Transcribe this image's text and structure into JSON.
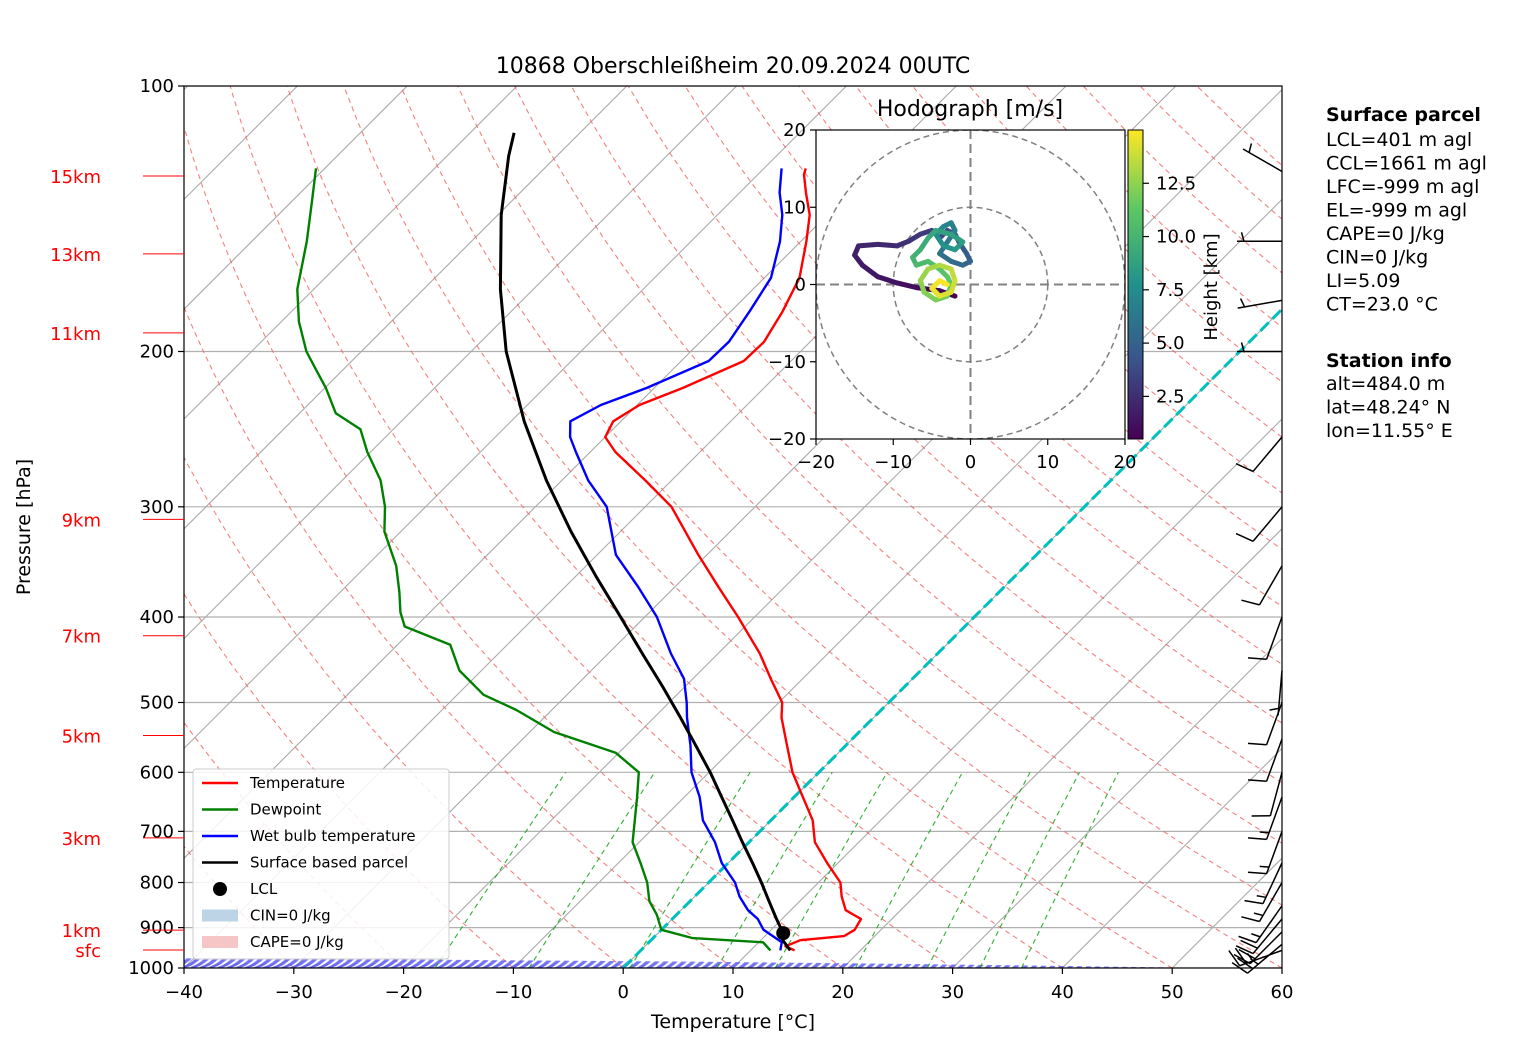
{
  "chart_data": {
    "type": "skew-t",
    "title": "10868 Oberschleißheim 20.09.2024 00UTC",
    "xlabel": "Temperature [°C]",
    "ylabel": "Pressure [hPa]",
    "xlim": [
      -40,
      60
    ],
    "ylim": [
      1000,
      100
    ],
    "x_ticks": [
      "−40",
      "−30",
      "−20",
      "−10",
      "0",
      "10",
      "20",
      "30",
      "40",
      "50",
      "60"
    ],
    "p_ticks": [
      {
        "p": 100,
        "label": "100"
      },
      {
        "p": 200,
        "label": "200"
      },
      {
        "p": 300,
        "label": "300"
      },
      {
        "p": 400,
        "label": "400"
      },
      {
        "p": 500,
        "label": "500"
      },
      {
        "p": 600,
        "label": "600"
      },
      {
        "p": 700,
        "label": "700"
      },
      {
        "p": 800,
        "label": "800"
      },
      {
        "p": 900,
        "label": "900"
      },
      {
        "p": 1000,
        "label": "1000"
      }
    ],
    "height_labels": [
      {
        "p": 126.5,
        "label": "15km"
      },
      {
        "p": 155,
        "label": "13km"
      },
      {
        "p": 190.5,
        "label": "11km"
      },
      {
        "p": 310,
        "label": "9km"
      },
      {
        "p": 420,
        "label": "7km"
      },
      {
        "p": 545,
        "label": "5km"
      },
      {
        "p": 712,
        "label": "3km"
      },
      {
        "p": 906,
        "label": "1km"
      },
      {
        "p": 954,
        "label": "sfc"
      }
    ],
    "legend": [
      {
        "label": "Temperature",
        "color": "#ff0000",
        "kind": "line"
      },
      {
        "label": "Dewpoint",
        "color": "#008000",
        "kind": "line"
      },
      {
        "label": "Wet bulb temperature",
        "color": "#0000ff",
        "kind": "line"
      },
      {
        "label": "Surface based parcel",
        "color": "#000000",
        "kind": "line"
      },
      {
        "label": "LCL",
        "color": "#000000",
        "kind": "dot"
      },
      {
        "label": "CIN=0 J/kg",
        "color": "#bcd4e6",
        "kind": "patch"
      },
      {
        "label": "CAPE=0 J/kg",
        "color": "#f6c6c6",
        "kind": "patch"
      }
    ],
    "legend_position": "lower-left",
    "colors": {
      "temperature": "#ff0000",
      "dewpoint": "#008000",
      "wetbulb": "#0000ff",
      "parcel": "#000000",
      "zero_isotherm": "#00bfbf"
    },
    "series": [
      {
        "name": "Temperature",
        "points": [
          [
            955,
            14.0
          ],
          [
            945,
            12.8
          ],
          [
            930,
            13.6
          ],
          [
            920,
            17.2
          ],
          [
            905,
            17.6
          ],
          [
            880,
            17.2
          ],
          [
            860,
            15.0
          ],
          [
            830,
            13.4
          ],
          [
            800,
            12.0
          ],
          [
            760,
            9.0
          ],
          [
            720,
            6.0
          ],
          [
            680,
            3.8
          ],
          [
            640,
            0.8
          ],
          [
            600,
            -2.4
          ],
          [
            560,
            -5.3
          ],
          [
            520,
            -8.4
          ],
          [
            500,
            -9.7
          ],
          [
            470,
            -12.9
          ],
          [
            440,
            -16.2
          ],
          [
            400,
            -21.5
          ],
          [
            370,
            -26.0
          ],
          [
            340,
            -30.8
          ],
          [
            300,
            -37.6
          ],
          [
            280,
            -42.4
          ],
          [
            260,
            -47.7
          ],
          [
            250,
            -50.0
          ],
          [
            240,
            -50.7
          ],
          [
            230,
            -49.8
          ],
          [
            220,
            -47.4
          ],
          [
            205,
            -44.3
          ],
          [
            195,
            -44.2
          ],
          [
            180,
            -45.3
          ],
          [
            165,
            -46.8
          ],
          [
            150,
            -49.5
          ],
          [
            140,
            -51.6
          ],
          [
            132,
            -54.0
          ],
          [
            126,
            -55.8
          ],
          [
            124,
            -56.2
          ]
        ]
      },
      {
        "name": "Dewpoint",
        "points": [
          [
            955,
            11.8
          ],
          [
            935,
            10.4
          ],
          [
            925,
            3.6
          ],
          [
            905,
            0.0
          ],
          [
            870,
            -1.8
          ],
          [
            840,
            -3.7
          ],
          [
            800,
            -5.6
          ],
          [
            760,
            -8.0
          ],
          [
            720,
            -10.6
          ],
          [
            680,
            -12.4
          ],
          [
            640,
            -14.3
          ],
          [
            600,
            -16.4
          ],
          [
            570,
            -20.3
          ],
          [
            540,
            -27.8
          ],
          [
            510,
            -33.2
          ],
          [
            490,
            -37.6
          ],
          [
            460,
            -42.0
          ],
          [
            430,
            -45.2
          ],
          [
            410,
            -51.0
          ],
          [
            395,
            -52.7
          ],
          [
            375,
            -54.6
          ],
          [
            350,
            -57.3
          ],
          [
            320,
            -61.5
          ],
          [
            300,
            -63.7
          ],
          [
            280,
            -66.5
          ],
          [
            260,
            -70.3
          ],
          [
            245,
            -73.0
          ],
          [
            235,
            -76.7
          ],
          [
            220,
            -79.9
          ],
          [
            210,
            -82.4
          ],
          [
            200,
            -85.0
          ],
          [
            185,
            -88.4
          ],
          [
            170,
            -91.5
          ],
          [
            150,
            -95.0
          ],
          [
            135,
            -98.2
          ],
          [
            124,
            -100.8
          ]
        ]
      },
      {
        "name": "Wet bulb temperature",
        "points": [
          [
            955,
            12.7
          ],
          [
            935,
            12.1
          ],
          [
            905,
            9.3
          ],
          [
            880,
            7.8
          ],
          [
            860,
            6.1
          ],
          [
            830,
            4.1
          ],
          [
            800,
            2.4
          ],
          [
            760,
            -0.6
          ],
          [
            720,
            -3.1
          ],
          [
            680,
            -6.2
          ],
          [
            640,
            -8.6
          ],
          [
            600,
            -11.6
          ],
          [
            560,
            -14.1
          ],
          [
            520,
            -17.0
          ],
          [
            500,
            -18.4
          ],
          [
            470,
            -20.8
          ],
          [
            440,
            -24.3
          ],
          [
            400,
            -28.9
          ],
          [
            370,
            -33.3
          ],
          [
            340,
            -38.3
          ],
          [
            300,
            -43.5
          ],
          [
            280,
            -47.6
          ],
          [
            260,
            -51.3
          ],
          [
            250,
            -53.2
          ],
          [
            240,
            -54.6
          ],
          [
            230,
            -53.3
          ],
          [
            220,
            -50.7
          ],
          [
            205,
            -47.5
          ],
          [
            195,
            -47.4
          ],
          [
            180,
            -48.3
          ],
          [
            165,
            -49.4
          ],
          [
            150,
            -51.9
          ],
          [
            140,
            -54.1
          ],
          [
            132,
            -56.4
          ],
          [
            124,
            -58.4
          ]
        ]
      },
      {
        "name": "Surface based parcel",
        "points": [
          [
            955,
            13.6
          ],
          [
            930,
            12.0
          ],
          [
            913,
            11.4
          ],
          [
            880,
            9.5
          ],
          [
            840,
            7.2
          ],
          [
            800,
            4.8
          ],
          [
            760,
            2.2
          ],
          [
            720,
            -0.6
          ],
          [
            680,
            -3.5
          ],
          [
            640,
            -6.6
          ],
          [
            600,
            -9.9
          ],
          [
            560,
            -13.6
          ],
          [
            520,
            -17.6
          ],
          [
            480,
            -22.0
          ],
          [
            440,
            -26.9
          ],
          [
            400,
            -32.2
          ],
          [
            360,
            -38.1
          ],
          [
            320,
            -44.5
          ],
          [
            280,
            -51.4
          ],
          [
            240,
            -58.8
          ],
          [
            200,
            -66.8
          ],
          [
            170,
            -73.0
          ],
          [
            140,
            -79.7
          ],
          [
            120,
            -84.4
          ],
          [
            113,
            -86.0
          ]
        ]
      }
    ],
    "lcl": {
      "p": 913,
      "t": 11.4
    },
    "wind_barbs": [
      {
        "p": 955,
        "dir": 250,
        "speed": 25
      },
      {
        "p": 940,
        "dir": 230,
        "speed": 25
      },
      {
        "p": 910,
        "dir": 225,
        "speed": 20
      },
      {
        "p": 880,
        "dir": 220,
        "speed": 20
      },
      {
        "p": 850,
        "dir": 215,
        "speed": 15
      },
      {
        "p": 800,
        "dir": 210,
        "speed": 15
      },
      {
        "p": 760,
        "dir": 205,
        "speed": 15
      },
      {
        "p": 700,
        "dir": 200,
        "speed": 15
      },
      {
        "p": 640,
        "dir": 200,
        "speed": 15
      },
      {
        "p": 600,
        "dir": 195,
        "speed": 10
      },
      {
        "p": 550,
        "dir": 200,
        "speed": 10
      },
      {
        "p": 500,
        "dir": 200,
        "speed": 10
      },
      {
        "p": 460,
        "dir": 185,
        "speed": 5
      },
      {
        "p": 400,
        "dir": 200,
        "speed": 10
      },
      {
        "p": 350,
        "dir": 210,
        "speed": 10
      },
      {
        "p": 300,
        "dir": 220,
        "speed": 10
      },
      {
        "p": 250,
        "dir": 220,
        "speed": 10
      },
      {
        "p": 200,
        "dir": 270,
        "speed": 5
      },
      {
        "p": 175,
        "dir": 260,
        "speed": 5
      },
      {
        "p": 150,
        "dir": 270,
        "speed": 5
      },
      {
        "p": 125,
        "dir": 300,
        "speed": 5
      }
    ]
  },
  "hodograph": {
    "title": "Hodograph [m/s]",
    "xlim": [
      -20,
      20
    ],
    "ylim": [
      -20,
      20
    ],
    "ticks": [
      "−20",
      "−10",
      "0",
      "10",
      "20"
    ],
    "ring_values": [
      10,
      20
    ],
    "colorbar": {
      "label": "Height [km]",
      "ticks": [
        "2.5",
        "5.0",
        "7.5",
        "10.0",
        "12.5"
      ],
      "range": [
        0.5,
        15
      ]
    },
    "trace": [
      [
        -2.0,
        -1.5,
        0.5
      ],
      [
        -4.0,
        -0.8,
        0.7
      ],
      [
        -7.0,
        -0.4,
        0.9
      ],
      [
        -9.5,
        0.2,
        1.1
      ],
      [
        -12.0,
        1.0,
        1.3
      ],
      [
        -14.0,
        2.5,
        1.5
      ],
      [
        -15.0,
        3.8,
        1.7
      ],
      [
        -14.5,
        5.0,
        1.9
      ],
      [
        -12.0,
        5.2,
        2.1
      ],
      [
        -9.5,
        5.0,
        2.3
      ],
      [
        -8.0,
        5.6,
        2.5
      ],
      [
        -6.5,
        6.5,
        2.8
      ],
      [
        -5.0,
        7.0,
        3.1
      ],
      [
        -4.0,
        6.0,
        3.4
      ],
      [
        -3.0,
        7.0,
        3.7
      ],
      [
        -2.0,
        6.5,
        4.0
      ],
      [
        -1.5,
        5.5,
        4.3
      ],
      [
        -0.5,
        4.0,
        4.6
      ],
      [
        0,
        3.0,
        4.9
      ],
      [
        -1.0,
        2.5,
        5.2
      ],
      [
        -2.5,
        3.0,
        5.5
      ],
      [
        -4.0,
        4.0,
        5.8
      ],
      [
        -3.0,
        5.5,
        6.1
      ],
      [
        -2.0,
        7.0,
        6.4
      ],
      [
        -2.5,
        8.0,
        6.7
      ],
      [
        -3.5,
        7.5,
        7.0
      ],
      [
        -4.5,
        6.5,
        7.3
      ],
      [
        -3.5,
        5.0,
        7.6
      ],
      [
        -2.0,
        4.5,
        7.9
      ],
      [
        -1.0,
        5.5,
        8.2
      ],
      [
        -2.5,
        6.5,
        8.5
      ],
      [
        -4.5,
        7.0,
        8.8
      ],
      [
        -5.5,
        6.0,
        9.1
      ],
      [
        -6.5,
        4.5,
        9.4
      ],
      [
        -7.5,
        3.5,
        9.7
      ],
      [
        -7.0,
        2.5,
        10.0
      ],
      [
        -5.5,
        3.0,
        10.3
      ],
      [
        -4.0,
        2.0,
        10.6
      ],
      [
        -3.0,
        1.0,
        10.9
      ],
      [
        -2.5,
        0,
        11.2
      ],
      [
        -3.0,
        -1.5,
        11.5
      ],
      [
        -4.5,
        -2.0,
        11.8
      ],
      [
        -6.0,
        -1.0,
        12.1
      ],
      [
        -6.5,
        0.5,
        12.4
      ],
      [
        -5.5,
        2.0,
        12.7
      ],
      [
        -4.0,
        2.5,
        13.0
      ],
      [
        -2.5,
        2.0,
        13.3
      ],
      [
        -2.0,
        0.5,
        13.6
      ],
      [
        -2.5,
        -1.0,
        13.9
      ],
      [
        -4.0,
        -1.5,
        14.2
      ],
      [
        -5.0,
        -0.5,
        14.5
      ],
      [
        -4.0,
        0.5,
        14.7
      ],
      [
        -3.0,
        0,
        14.9
      ]
    ]
  },
  "surface_parcel": {
    "heading": "Surface parcel",
    "lines": [
      "LCL=401 m agl",
      "CCL=1661 m agl",
      "LFC=-999 m agl",
      "EL=-999 m agl",
      "CAPE=0 J/kg",
      "CIN=0 J/kg",
      "LI=5.09",
      "CT=23.0 °C"
    ]
  },
  "station_info": {
    "heading": "Station info",
    "lines": [
      "alt=484.0 m",
      "lat=48.24° N",
      "lon=11.55° E"
    ]
  }
}
